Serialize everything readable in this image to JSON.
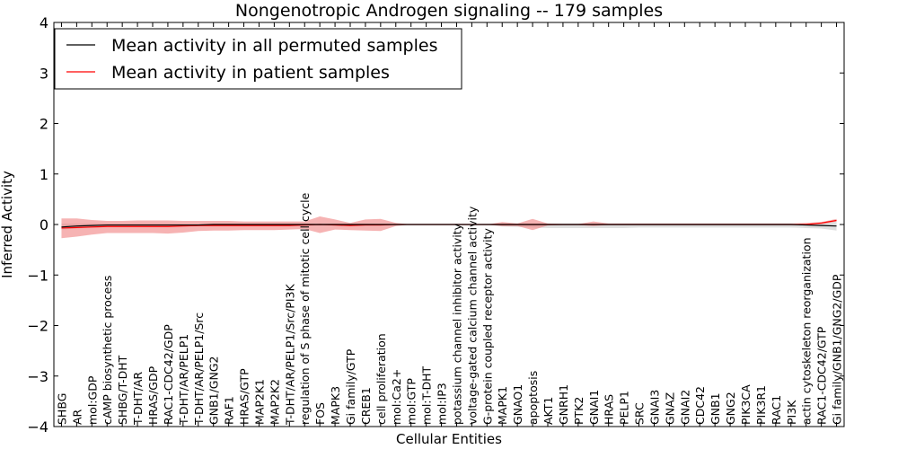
{
  "chart_data": {
    "type": "line",
    "title": "Nongenotropic Androgen signaling -- 179 samples",
    "xlabel": "Cellular Entities",
    "ylabel": "Inferred Activity",
    "ylim": [
      -4,
      4
    ],
    "yticks": [
      "−4",
      "−3",
      "−2",
      "−1",
      "0",
      "1",
      "2",
      "3",
      "4"
    ],
    "grid": false,
    "legend_position": "top-left",
    "categories": [
      "SHBG",
      "AR",
      "mol:GDP",
      "cAMP biosynthetic process",
      "SHBG/T-DHT",
      "T-DHT/AR",
      "HRAS/GDP",
      "RAC1-CDC42/GDP",
      "T-DHT/AR/PELP1",
      "T-DHT/AR/PELP1/Src",
      "GNB1/GNG2",
      "RAF1",
      "HRAS/GTP",
      "MAP2K1",
      "MAP2K2",
      "T-DHT/AR/PELP1/Src/PI3K",
      "regulation of S phase of mitotic cell cycle",
      "FOS",
      "MAPK3",
      "Gi family/GTP",
      "CREB1",
      "cell proliferation",
      "mol:Ca2+",
      "mol:GTP",
      "mol:T-DHT",
      "mol:IP3",
      "potassium channel inhibitor activity",
      "voltage-gated calcium channel activity",
      "G-protein coupled receptor activity",
      "MAPK1",
      "GNAO1",
      "apoptosis",
      "AKT1",
      "GNRH1",
      "PTK2",
      "GNAI1",
      "HRAS",
      "PELP1",
      "SRC",
      "GNAI3",
      "GNAZ",
      "GNAI2",
      "CDC42",
      "GNB1",
      "GNG2",
      "PIK3CA",
      "PIK3R1",
      "RAC1",
      "PI3K",
      "actin cytoskeleton reorganization",
      "RAC1-CDC42/GTP",
      "Gi family/GNB1/GNG2/GDP"
    ],
    "series": [
      {
        "name": "Mean activity in all permuted samples",
        "color": "#000000",
        "values": [
          -0.05,
          -0.03,
          -0.02,
          -0.01,
          -0.01,
          -0.01,
          -0.01,
          -0.01,
          -0.01,
          -0.01,
          0.0,
          0.0,
          0.0,
          0.0,
          0.0,
          0.0,
          0.0,
          0.0,
          0.0,
          0.0,
          0.0,
          0.0,
          0.0,
          0.0,
          0.0,
          0.0,
          0.0,
          0.0,
          0.0,
          0.0,
          0.0,
          0.0,
          0.0,
          0.0,
          0.0,
          0.0,
          0.0,
          0.0,
          0.0,
          0.0,
          0.0,
          0.0,
          0.0,
          0.0,
          0.0,
          0.0,
          0.0,
          0.0,
          0.0,
          -0.01,
          -0.02,
          -0.03
        ],
        "band_low": [
          -0.1,
          -0.08,
          -0.06,
          -0.05,
          -0.05,
          -0.04,
          -0.04,
          -0.04,
          -0.03,
          -0.03,
          -0.03,
          -0.03,
          -0.03,
          -0.03,
          -0.03,
          -0.03,
          -0.02,
          -0.02,
          -0.02,
          -0.02,
          -0.02,
          -0.01,
          -0.01,
          0.0,
          0.0,
          0.0,
          0.0,
          0.0,
          0.0,
          -0.04,
          -0.05,
          -0.06,
          -0.07,
          -0.07,
          -0.07,
          -0.07,
          -0.07,
          -0.07,
          -0.06,
          -0.06,
          -0.06,
          -0.06,
          -0.06,
          -0.06,
          -0.06,
          -0.06,
          -0.06,
          -0.06,
          -0.06,
          -0.07,
          -0.08,
          -0.12
        ],
        "band_high": [
          0.02,
          0.02,
          0.02,
          0.02,
          0.02,
          0.02,
          0.02,
          0.02,
          0.02,
          0.02,
          0.02,
          0.02,
          0.02,
          0.02,
          0.02,
          0.02,
          0.02,
          0.02,
          0.02,
          0.02,
          0.02,
          0.01,
          0.01,
          0.0,
          0.0,
          0.0,
          0.0,
          0.0,
          0.0,
          0.02,
          0.02,
          0.02,
          0.02,
          0.02,
          0.02,
          0.02,
          0.02,
          0.02,
          0.02,
          0.02,
          0.02,
          0.02,
          0.02,
          0.02,
          0.02,
          0.02,
          0.02,
          0.02,
          0.02,
          0.02,
          0.03,
          0.06
        ]
      },
      {
        "name": "Mean activity in patient samples",
        "color": "#ff0000",
        "band_color": "#f08080",
        "values": [
          -0.07,
          -0.06,
          -0.05,
          -0.04,
          -0.04,
          -0.04,
          -0.04,
          -0.04,
          -0.03,
          -0.02,
          -0.02,
          -0.02,
          -0.02,
          -0.02,
          -0.02,
          -0.02,
          -0.01,
          0.0,
          -0.01,
          -0.02,
          -0.01,
          -0.01,
          0.0,
          0.0,
          0.0,
          0.0,
          0.0,
          0.0,
          0.0,
          0.0,
          0.0,
          0.0,
          0.0,
          0.0,
          0.0,
          0.0,
          0.0,
          0.0,
          0.0,
          0.0,
          0.0,
          0.0,
          0.0,
          0.0,
          0.0,
          0.0,
          0.0,
          0.0,
          0.0,
          0.0,
          0.03,
          0.08
        ],
        "band_low": [
          -0.27,
          -0.24,
          -0.2,
          -0.17,
          -0.17,
          -0.17,
          -0.17,
          -0.18,
          -0.16,
          -0.13,
          -0.12,
          -0.12,
          -0.11,
          -0.11,
          -0.11,
          -0.1,
          -0.09,
          -0.17,
          -0.1,
          -0.11,
          -0.12,
          -0.13,
          -0.03,
          0.0,
          0.0,
          0.0,
          0.0,
          0.0,
          0.0,
          -0.03,
          -0.03,
          -0.11,
          -0.02,
          -0.01,
          -0.01,
          -0.03,
          -0.01,
          -0.01,
          -0.01,
          -0.01,
          -0.01,
          -0.01,
          -0.01,
          -0.01,
          -0.01,
          -0.01,
          -0.01,
          -0.01,
          -0.01,
          -0.01,
          0.0,
          0.06
        ],
        "band_high": [
          0.12,
          0.12,
          0.09,
          0.07,
          0.07,
          0.08,
          0.08,
          0.08,
          0.07,
          0.07,
          0.07,
          0.07,
          0.06,
          0.06,
          0.06,
          0.06,
          0.06,
          0.16,
          0.1,
          0.03,
          0.1,
          0.11,
          0.03,
          0.0,
          0.0,
          0.0,
          0.0,
          0.0,
          0.0,
          0.05,
          0.02,
          0.11,
          0.02,
          0.01,
          0.01,
          0.06,
          0.02,
          0.02,
          0.02,
          0.02,
          0.02,
          0.02,
          0.02,
          0.02,
          0.02,
          0.02,
          0.02,
          0.02,
          0.02,
          0.03,
          0.05,
          0.11
        ]
      }
    ]
  }
}
